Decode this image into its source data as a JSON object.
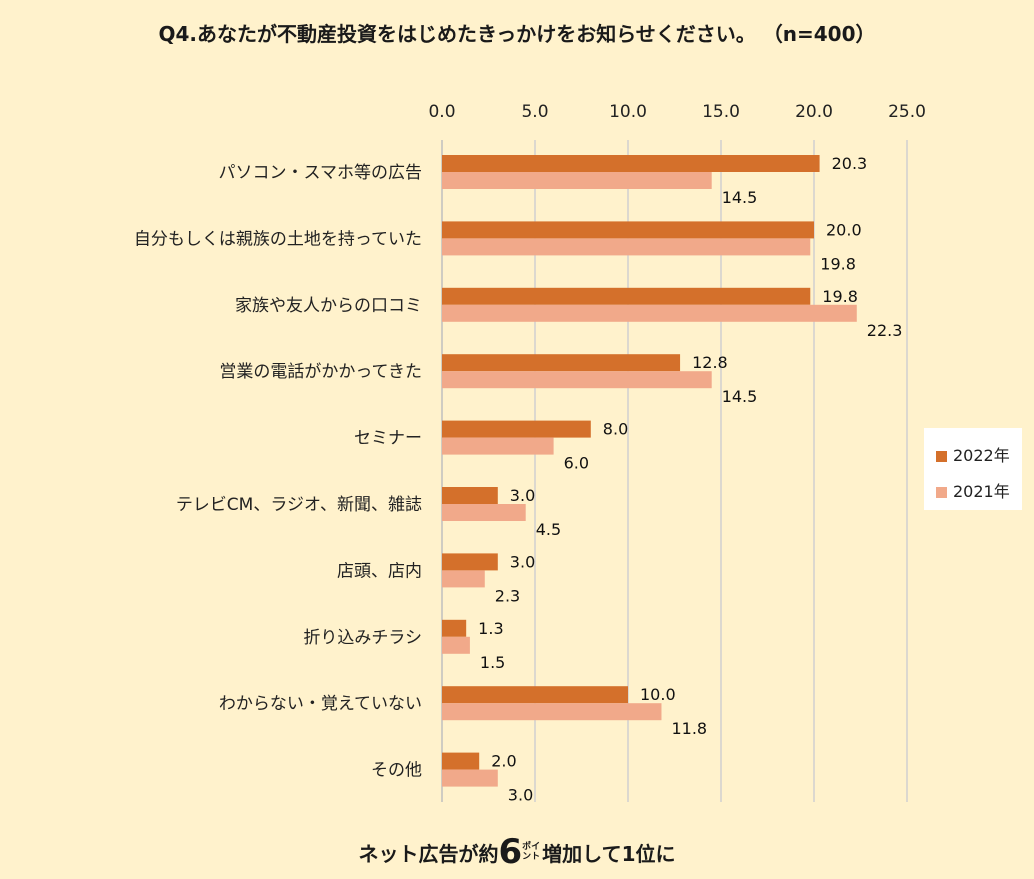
{
  "title": "Q4.あなたが不動産投資をはじめたきっかけをお知らせください。 （n=400）",
  "footer": {
    "prefix": "ネット広告が約",
    "number": "6",
    "unit": "ポイント",
    "suffix": "増加して1位に"
  },
  "legend": {
    "s2022": "2022年",
    "s2021": "2021年"
  },
  "colors": {
    "s2022": "#d4702b",
    "s2021": "#f1a98a",
    "grid": "#d0d0d0",
    "axis": "#bfbfbf"
  },
  "chart_data": {
    "type": "bar",
    "orientation": "horizontal",
    "categories": [
      "パソコン・スマホ等の広告",
      "自分もしくは親族の土地を持っていた",
      "家族や友人からの口コミ",
      "営業の電話がかかってきた",
      "セミナー",
      "テレビCM、ラジオ、新聞、雑誌",
      "店頭、店内",
      "折り込みチラシ",
      "わからない・覚えていない",
      "その他"
    ],
    "series": [
      {
        "name": "2022年",
        "values": [
          20.3,
          20.0,
          19.8,
          12.8,
          8.0,
          3.0,
          3.0,
          1.3,
          10.0,
          2.0
        ]
      },
      {
        "name": "2021年",
        "values": [
          14.5,
          19.8,
          22.3,
          14.5,
          6.0,
          4.5,
          2.3,
          1.5,
          11.8,
          3.0
        ]
      }
    ],
    "xlim": [
      0,
      25
    ],
    "xticks": [
      "0.0",
      "5.0",
      "10.0",
      "15.0",
      "20.0",
      "25.0"
    ],
    "grid": true,
    "axis_position": "top",
    "legend_position": "right"
  }
}
